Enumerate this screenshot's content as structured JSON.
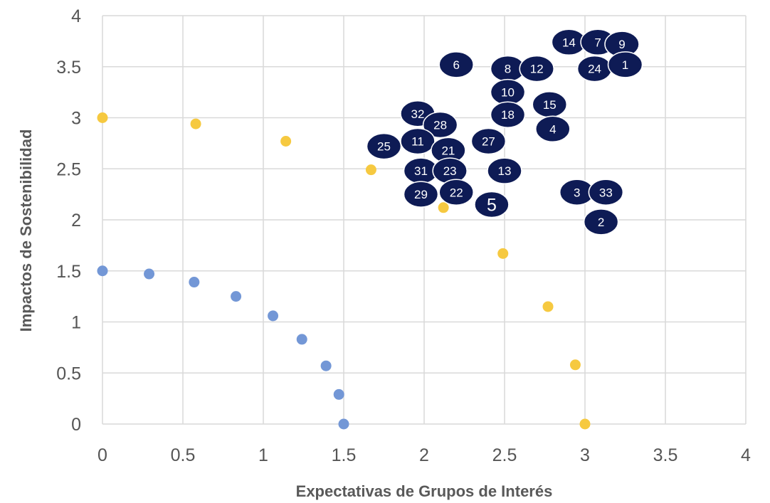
{
  "chart_data": {
    "type": "scatter",
    "title": "",
    "xlabel": "Expectativas de Grupos de Interés",
    "ylabel": "Impactos de Sostenibilidad",
    "xlim": [
      0,
      4
    ],
    "ylim": [
      0,
      4
    ],
    "xticks": [
      "0",
      "0.5",
      "1",
      "1.5",
      "2",
      "2.5",
      "3",
      "3.5",
      "4"
    ],
    "yticks": [
      "0",
      "0.5",
      "1",
      "1.5",
      "2",
      "2.5",
      "3",
      "3.5",
      "4"
    ],
    "grid": true,
    "legend": "none",
    "series": [
      {
        "color": "#7397d6",
        "points": [
          {
            "x": 0,
            "y": 1.5
          },
          {
            "x": 0.29,
            "y": 1.47
          },
          {
            "x": 0.57,
            "y": 1.39
          },
          {
            "x": 0.83,
            "y": 1.25
          },
          {
            "x": 1.06,
            "y": 1.06
          },
          {
            "x": 1.24,
            "y": 0.83
          },
          {
            "x": 1.39,
            "y": 0.57
          },
          {
            "x": 1.47,
            "y": 0.29
          },
          {
            "x": 1.5,
            "y": 0
          }
        ]
      },
      {
        "color": "#f6c940",
        "points": [
          {
            "x": 0,
            "y": 3
          },
          {
            "x": 0.58,
            "y": 2.94
          },
          {
            "x": 1.14,
            "y": 2.77
          },
          {
            "x": 1.67,
            "y": 2.49
          },
          {
            "x": 2.12,
            "y": 2.12
          },
          {
            "x": 2.49,
            "y": 1.67
          },
          {
            "x": 2.77,
            "y": 1.15
          },
          {
            "x": 2.94,
            "y": 0.58
          },
          {
            "x": 3,
            "y": 0
          }
        ]
      },
      {
        "color": "#0e1b55",
        "labeled": true,
        "points": [
          {
            "label": "14",
            "x": 2.9,
            "y": 3.74
          },
          {
            "label": "7",
            "x": 3.08,
            "y": 3.74
          },
          {
            "label": "9",
            "x": 3.23,
            "y": 3.72
          },
          {
            "label": "6",
            "x": 2.2,
            "y": 3.52
          },
          {
            "label": "8",
            "x": 2.52,
            "y": 3.48
          },
          {
            "label": "12",
            "x": 2.7,
            "y": 3.48
          },
          {
            "label": "24",
            "x": 3.06,
            "y": 3.48
          },
          {
            "label": "1",
            "x": 3.25,
            "y": 3.52
          },
          {
            "label": "10",
            "x": 2.52,
            "y": 3.25
          },
          {
            "label": "15",
            "x": 2.78,
            "y": 3.13
          },
          {
            "label": "18",
            "x": 2.52,
            "y": 3.03
          },
          {
            "label": "32",
            "x": 1.96,
            "y": 3.04
          },
          {
            "label": "28",
            "x": 2.1,
            "y": 2.93
          },
          {
            "label": "4",
            "x": 2.8,
            "y": 2.89
          },
          {
            "label": "11",
            "x": 1.96,
            "y": 2.77
          },
          {
            "label": "27",
            "x": 2.4,
            "y": 2.77
          },
          {
            "label": "25",
            "x": 1.75,
            "y": 2.72
          },
          {
            "label": "21",
            "x": 2.15,
            "y": 2.68
          },
          {
            "label": "31",
            "x": 1.98,
            "y": 2.48
          },
          {
            "label": "23",
            "x": 2.16,
            "y": 2.48
          },
          {
            "label": "13",
            "x": 2.5,
            "y": 2.48
          },
          {
            "label": "29",
            "x": 1.98,
            "y": 2.25
          },
          {
            "label": "22",
            "x": 2.2,
            "y": 2.27
          },
          {
            "label": "5",
            "x": 2.42,
            "y": 2.15
          },
          {
            "label": "3",
            "x": 2.95,
            "y": 2.27
          },
          {
            "label": "33",
            "x": 3.13,
            "y": 2.27
          },
          {
            "label": "2",
            "x": 3.1,
            "y": 1.98
          }
        ]
      }
    ]
  }
}
